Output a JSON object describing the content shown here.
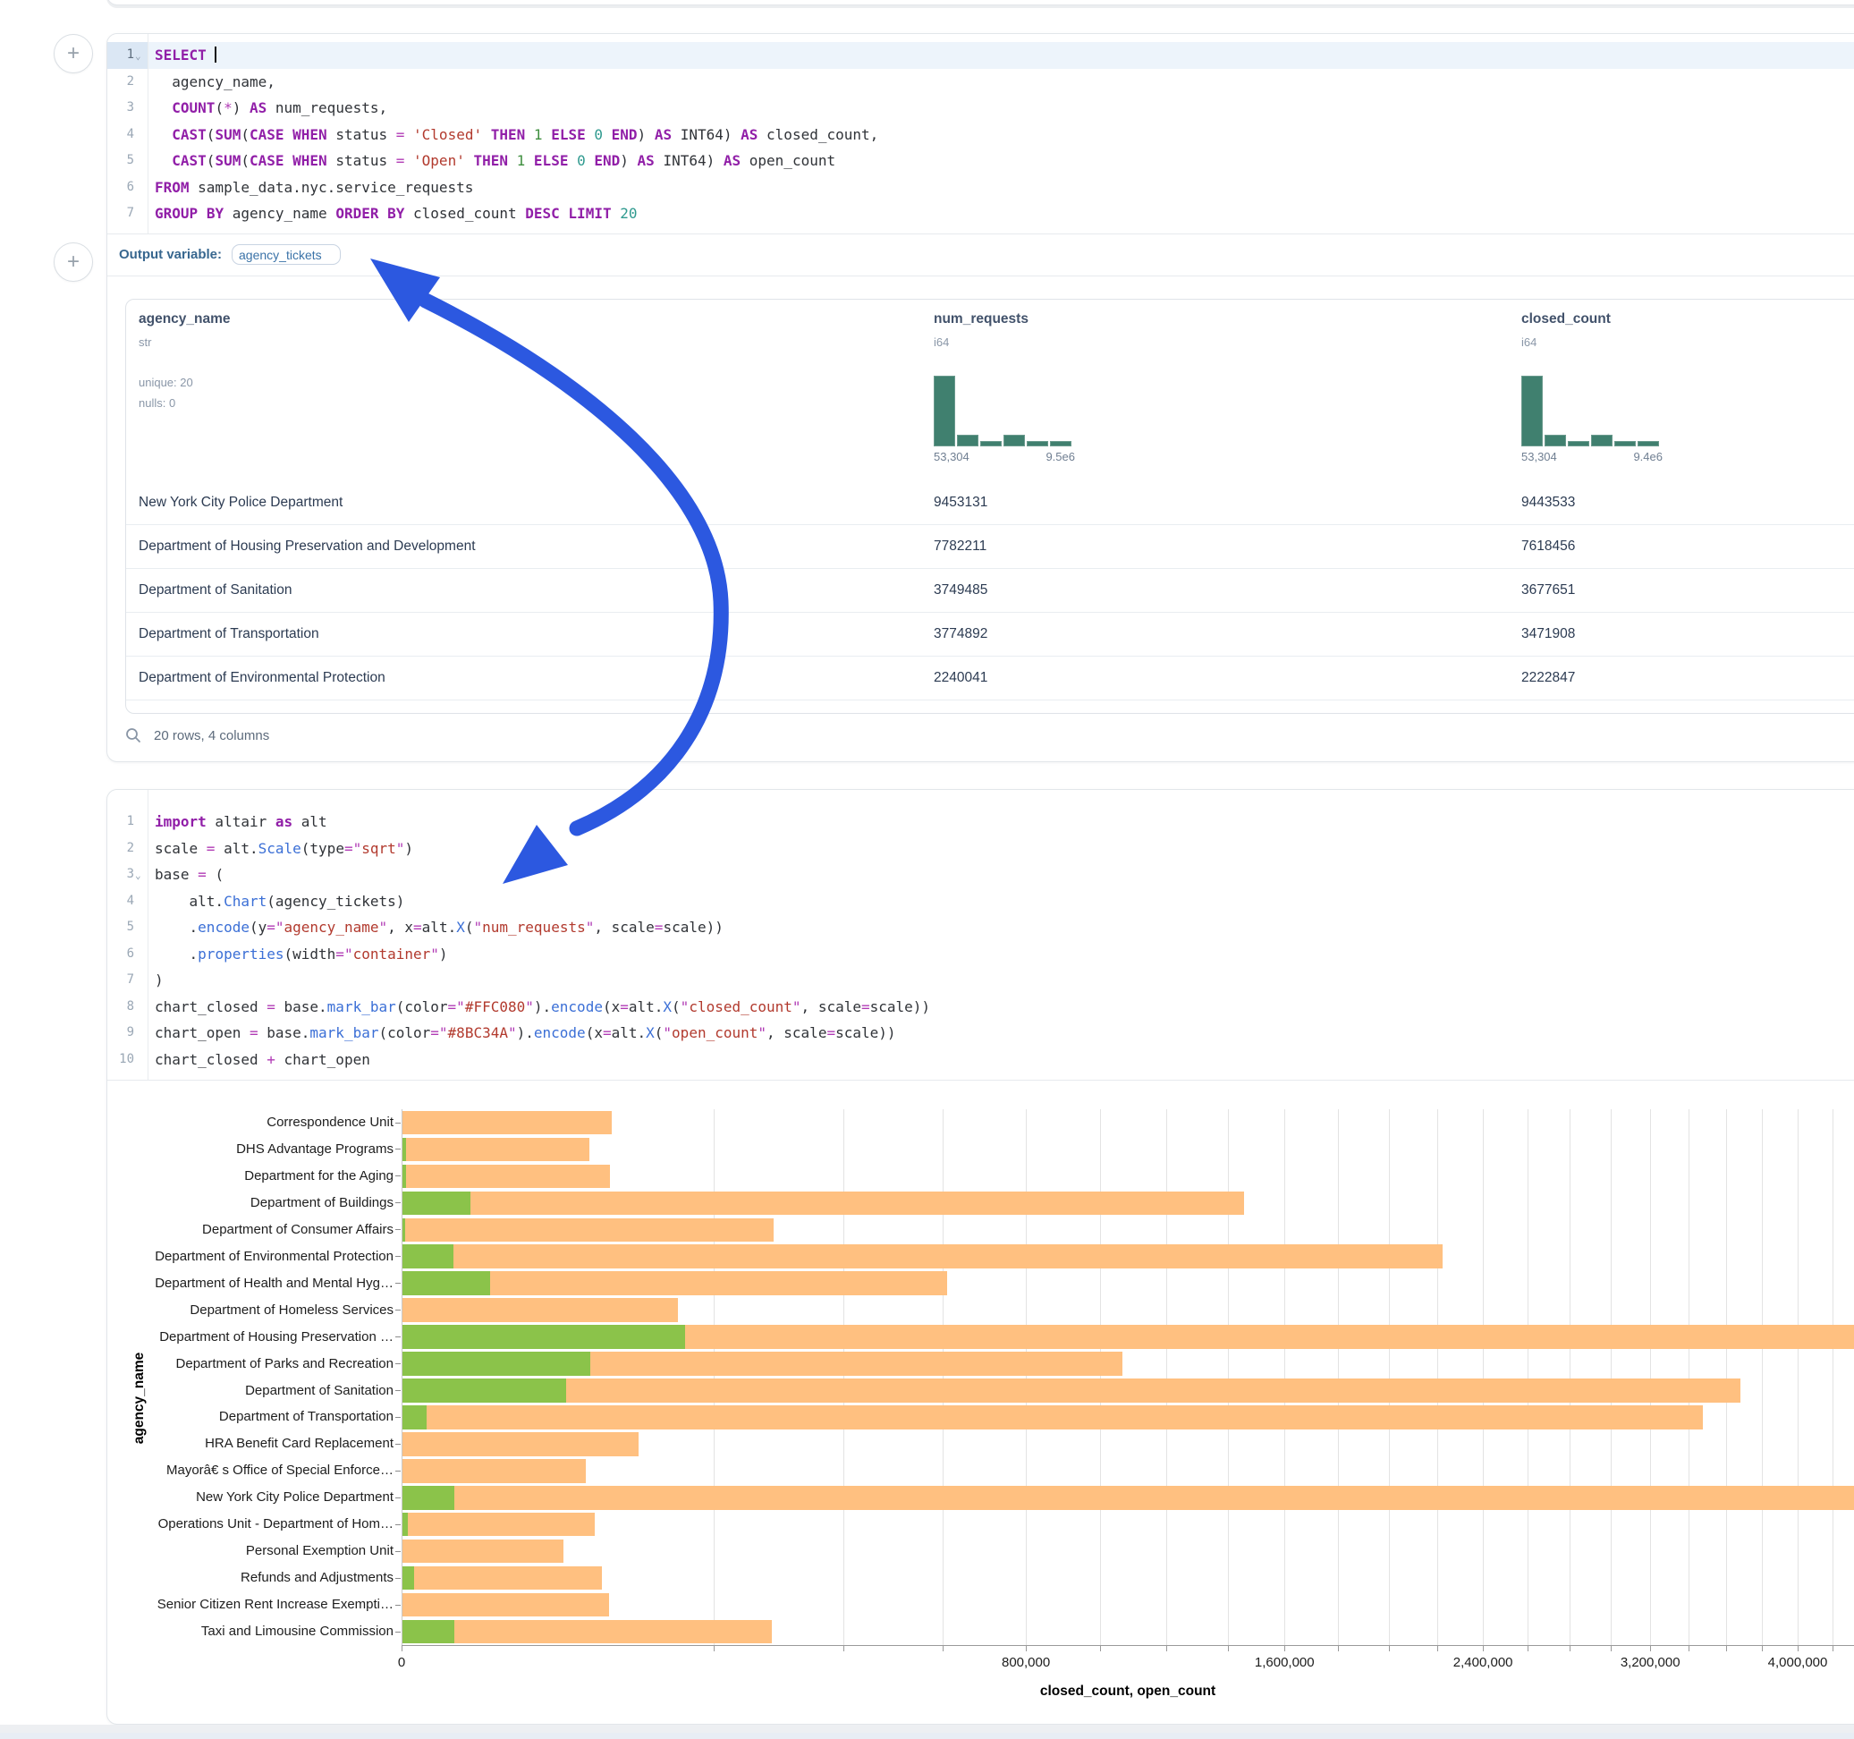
{
  "ui": {
    "add_cell_label": "+",
    "output_variable_label": "Output variable:",
    "output_variable_value": "agency_tickets",
    "table_footer": "20 rows, 4 columns",
    "arrow_color": "#2c58e0"
  },
  "sql_cell": {
    "code": {
      "lines": [
        {
          "n": "1",
          "fold": true,
          "active": true,
          "cursor": true,
          "tokens": [
            [
              "kw",
              "SELECT"
            ],
            [
              "txt",
              " "
            ]
          ]
        },
        {
          "n": "2",
          "tokens": [
            [
              "txt",
              "  agency_name,"
            ]
          ]
        },
        {
          "n": "3",
          "tokens": [
            [
              "txt",
              "  "
            ],
            [
              "kw",
              "COUNT"
            ],
            [
              "txt",
              "("
            ],
            [
              "op",
              "*"
            ],
            [
              "txt",
              ") "
            ],
            [
              "kw",
              "AS"
            ],
            [
              "txt",
              " num_requests,"
            ]
          ]
        },
        {
          "n": "4",
          "tokens": [
            [
              "txt",
              "  "
            ],
            [
              "kw",
              "CAST"
            ],
            [
              "txt",
              "("
            ],
            [
              "kw",
              "SUM"
            ],
            [
              "txt",
              "("
            ],
            [
              "kw",
              "CASE"
            ],
            [
              "txt",
              " "
            ],
            [
              "kw",
              "WHEN"
            ],
            [
              "txt",
              " status "
            ],
            [
              "op",
              "="
            ],
            [
              "txt",
              " "
            ],
            [
              "str",
              "'Closed'"
            ],
            [
              "txt",
              " "
            ],
            [
              "kw",
              "THEN"
            ],
            [
              "txt",
              " "
            ],
            [
              "num",
              "1"
            ],
            [
              "txt",
              " "
            ],
            [
              "kw",
              "ELSE"
            ],
            [
              "txt",
              " "
            ],
            [
              "tnum",
              "0"
            ],
            [
              "txt",
              " "
            ],
            [
              "kw",
              "END"
            ],
            [
              "txt",
              ") "
            ],
            [
              "kw",
              "AS"
            ],
            [
              "txt",
              " INT64) "
            ],
            [
              "kw",
              "AS"
            ],
            [
              "txt",
              " closed_count,"
            ]
          ]
        },
        {
          "n": "5",
          "tokens": [
            [
              "txt",
              "  "
            ],
            [
              "kw",
              "CAST"
            ],
            [
              "txt",
              "("
            ],
            [
              "kw",
              "SUM"
            ],
            [
              "txt",
              "("
            ],
            [
              "kw",
              "CASE"
            ],
            [
              "txt",
              " "
            ],
            [
              "kw",
              "WHEN"
            ],
            [
              "txt",
              " status "
            ],
            [
              "op",
              "="
            ],
            [
              "txt",
              " "
            ],
            [
              "str",
              "'Open'"
            ],
            [
              "txt",
              " "
            ],
            [
              "kw",
              "THEN"
            ],
            [
              "txt",
              " "
            ],
            [
              "num",
              "1"
            ],
            [
              "txt",
              " "
            ],
            [
              "kw",
              "ELSE"
            ],
            [
              "txt",
              " "
            ],
            [
              "tnum",
              "0"
            ],
            [
              "txt",
              " "
            ],
            [
              "kw",
              "END"
            ],
            [
              "txt",
              ") "
            ],
            [
              "kw",
              "AS"
            ],
            [
              "txt",
              " INT64) "
            ],
            [
              "kw",
              "AS"
            ],
            [
              "txt",
              " open_count"
            ]
          ]
        },
        {
          "n": "6",
          "tokens": [
            [
              "kw",
              "FROM"
            ],
            [
              "txt",
              " sample_data.nyc.service_requests"
            ]
          ]
        },
        {
          "n": "7",
          "tokens": [
            [
              "kw",
              "GROUP"
            ],
            [
              "txt",
              " "
            ],
            [
              "kw",
              "BY"
            ],
            [
              "txt",
              " agency_name "
            ],
            [
              "kw",
              "ORDER"
            ],
            [
              "txt",
              " "
            ],
            [
              "kw",
              "BY"
            ],
            [
              "txt",
              " closed_count "
            ],
            [
              "kw",
              "DESC"
            ],
            [
              "txt",
              " "
            ],
            [
              "kw",
              "LIMIT"
            ],
            [
              "txt",
              " "
            ],
            [
              "tnum",
              "20"
            ]
          ]
        }
      ]
    },
    "table": {
      "columns": [
        {
          "name": "agency_name",
          "type": "str",
          "stats": [
            "unique: 20",
            "nulls: 0"
          ],
          "x": 14
        },
        {
          "name": "num_requests",
          "type": "i64",
          "x": 903,
          "hist": {
            "bars": [
              100,
              16,
              8,
              16,
              7,
              7
            ],
            "min_label": "53,304",
            "max_label": "9.5e6"
          }
        },
        {
          "name": "closed_count",
          "type": "i64",
          "x": 1560,
          "hist": {
            "bars": [
              100,
              17,
              8,
              17,
              8,
              8
            ],
            "min_label": "53,304",
            "max_label": "9.4e6"
          }
        }
      ],
      "rows": [
        [
          "New York City Police Department",
          "9453131",
          "9443533"
        ],
        [
          "Department of Housing Preservation and Development",
          "7782211",
          "7618456"
        ],
        [
          "Department of Sanitation",
          "3749485",
          "3677651"
        ],
        [
          "Department of Transportation",
          "3774892",
          "3471908"
        ],
        [
          "Department of Environmental Protection",
          "2240041",
          "2222847"
        ]
      ]
    }
  },
  "python_cell": {
    "code": {
      "lines": [
        {
          "n": "1",
          "tokens": [
            [
              "kw",
              "import"
            ],
            [
              "txt",
              " altair "
            ],
            [
              "kw",
              "as"
            ],
            [
              "txt",
              " alt"
            ]
          ]
        },
        {
          "n": "2",
          "tokens": [
            [
              "txt",
              "scale "
            ],
            [
              "op",
              "="
            ],
            [
              "txt",
              " alt."
            ],
            [
              "fn",
              "Scale"
            ],
            [
              "txt",
              "(type"
            ],
            [
              "op",
              "="
            ],
            [
              "qt",
              "\""
            ],
            [
              "str",
              "sqrt"
            ],
            [
              "qt",
              "\""
            ],
            [
              "txt",
              ")"
            ]
          ]
        },
        {
          "n": "3",
          "fold": true,
          "tokens": [
            [
              "txt",
              "base "
            ],
            [
              "op",
              "="
            ],
            [
              "txt",
              " ("
            ]
          ]
        },
        {
          "n": "4",
          "tokens": [
            [
              "txt",
              "    alt."
            ],
            [
              "fn",
              "Chart"
            ],
            [
              "txt",
              "(agency_tickets)"
            ]
          ]
        },
        {
          "n": "5",
          "tokens": [
            [
              "txt",
              "    ."
            ],
            [
              "fn",
              "encode"
            ],
            [
              "txt",
              "(y"
            ],
            [
              "op",
              "="
            ],
            [
              "qt",
              "\""
            ],
            [
              "str",
              "agency_name"
            ],
            [
              "qt",
              "\""
            ],
            [
              "txt",
              ", x"
            ],
            [
              "op",
              "="
            ],
            [
              "txt",
              "alt."
            ],
            [
              "fn",
              "X"
            ],
            [
              "txt",
              "("
            ],
            [
              "qt",
              "\""
            ],
            [
              "str",
              "num_requests"
            ],
            [
              "qt",
              "\""
            ],
            [
              "txt",
              ", scale"
            ],
            [
              "op",
              "="
            ],
            [
              "txt",
              "scale))"
            ]
          ]
        },
        {
          "n": "6",
          "tokens": [
            [
              "txt",
              "    ."
            ],
            [
              "fn",
              "properties"
            ],
            [
              "txt",
              "(width"
            ],
            [
              "op",
              "="
            ],
            [
              "qt",
              "\""
            ],
            [
              "str",
              "container"
            ],
            [
              "qt",
              "\""
            ],
            [
              "txt",
              ")"
            ]
          ]
        },
        {
          "n": "7",
          "tokens": [
            [
              "txt",
              ")"
            ]
          ]
        },
        {
          "n": "8",
          "tokens": [
            [
              "txt",
              "chart_closed "
            ],
            [
              "op",
              "="
            ],
            [
              "txt",
              " base."
            ],
            [
              "fn",
              "mark_bar"
            ],
            [
              "txt",
              "(color"
            ],
            [
              "op",
              "="
            ],
            [
              "qt",
              "\""
            ],
            [
              "str",
              "#FFC080"
            ],
            [
              "qt",
              "\""
            ],
            [
              "txt",
              ")."
            ],
            [
              "fn",
              "encode"
            ],
            [
              "txt",
              "(x"
            ],
            [
              "op",
              "="
            ],
            [
              "txt",
              "alt."
            ],
            [
              "fn",
              "X"
            ],
            [
              "txt",
              "("
            ],
            [
              "qt",
              "\""
            ],
            [
              "str",
              "closed_count"
            ],
            [
              "qt",
              "\""
            ],
            [
              "txt",
              ", scale"
            ],
            [
              "op",
              "="
            ],
            [
              "txt",
              "scale))"
            ]
          ]
        },
        {
          "n": "9",
          "tokens": [
            [
              "txt",
              "chart_open "
            ],
            [
              "op",
              "="
            ],
            [
              "txt",
              " base."
            ],
            [
              "fn",
              "mark_bar"
            ],
            [
              "txt",
              "(color"
            ],
            [
              "op",
              "="
            ],
            [
              "qt",
              "\""
            ],
            [
              "str",
              "#8BC34A"
            ],
            [
              "qt",
              "\""
            ],
            [
              "txt",
              ")."
            ],
            [
              "fn",
              "encode"
            ],
            [
              "txt",
              "(x"
            ],
            [
              "op",
              "="
            ],
            [
              "txt",
              "alt."
            ],
            [
              "fn",
              "X"
            ],
            [
              "txt",
              "("
            ],
            [
              "qt",
              "\""
            ],
            [
              "str",
              "open_count"
            ],
            [
              "qt",
              "\""
            ],
            [
              "txt",
              ", scale"
            ],
            [
              "op",
              "="
            ],
            [
              "txt",
              "scale))"
            ]
          ]
        },
        {
          "n": "10",
          "tokens": [
            [
              "txt",
              "chart_closed "
            ],
            [
              "op",
              "+"
            ],
            [
              "txt",
              " chart_open"
            ]
          ]
        }
      ]
    }
  },
  "chart_data": {
    "type": "bar",
    "orientation": "horizontal",
    "scale_type": "sqrt",
    "grid": true,
    "xlabel": "closed_count, open_count",
    "ylabel": "agency_name",
    "x_ticks": [
      0,
      800000,
      1600000,
      2400000,
      3200000,
      4000000
    ],
    "x_tick_labels": [
      "0",
      "800,000",
      "1,600,000",
      "2,400,000",
      "3,200,000",
      "4,000,000"
    ],
    "grid_step": 200000,
    "categories": [
      "Correspondence Unit",
      "DHS Advantage Programs",
      "Department for the Aging",
      "Department of Buildings",
      "Department of Consumer Affairs",
      "Department of Environmental Protection",
      "Department of Health and Mental Hyg…",
      "Department of Homeless Services",
      "Department of Housing Preservation …",
      "Department of Parks and Recreation",
      "Department of Sanitation",
      "Department of Transportation",
      "HRA Benefit Card Replacement",
      "Mayorâ€ s Office of Special Enforce…",
      "New York City Police Department",
      "Operations Unit - Department of Hom…",
      "Personal Exemption Unit",
      "Refunds and Adjustments",
      "Senior Citizen Rent Increase Exempti…",
      "Taxi and Limousine Commission"
    ],
    "series": [
      {
        "name": "closed_count",
        "color": "#FFC080",
        "values": [
          90000,
          72000,
          89000,
          1456000,
          283000,
          2222847,
          610000,
          156000,
          7618456,
          1064000,
          3677651,
          3471908,
          115000,
          69000,
          9443533,
          76000,
          53304,
          82000,
          88000,
          281000
        ]
      },
      {
        "name": "open_count",
        "color": "#8BC34A",
        "values": [
          0,
          35,
          40,
          9500,
          25,
          5500,
          16000,
          0,
          164000,
          73000,
          55000,
          1200,
          0,
          0,
          5700,
          70,
          0,
          300,
          0,
          5700
        ]
      }
    ]
  }
}
